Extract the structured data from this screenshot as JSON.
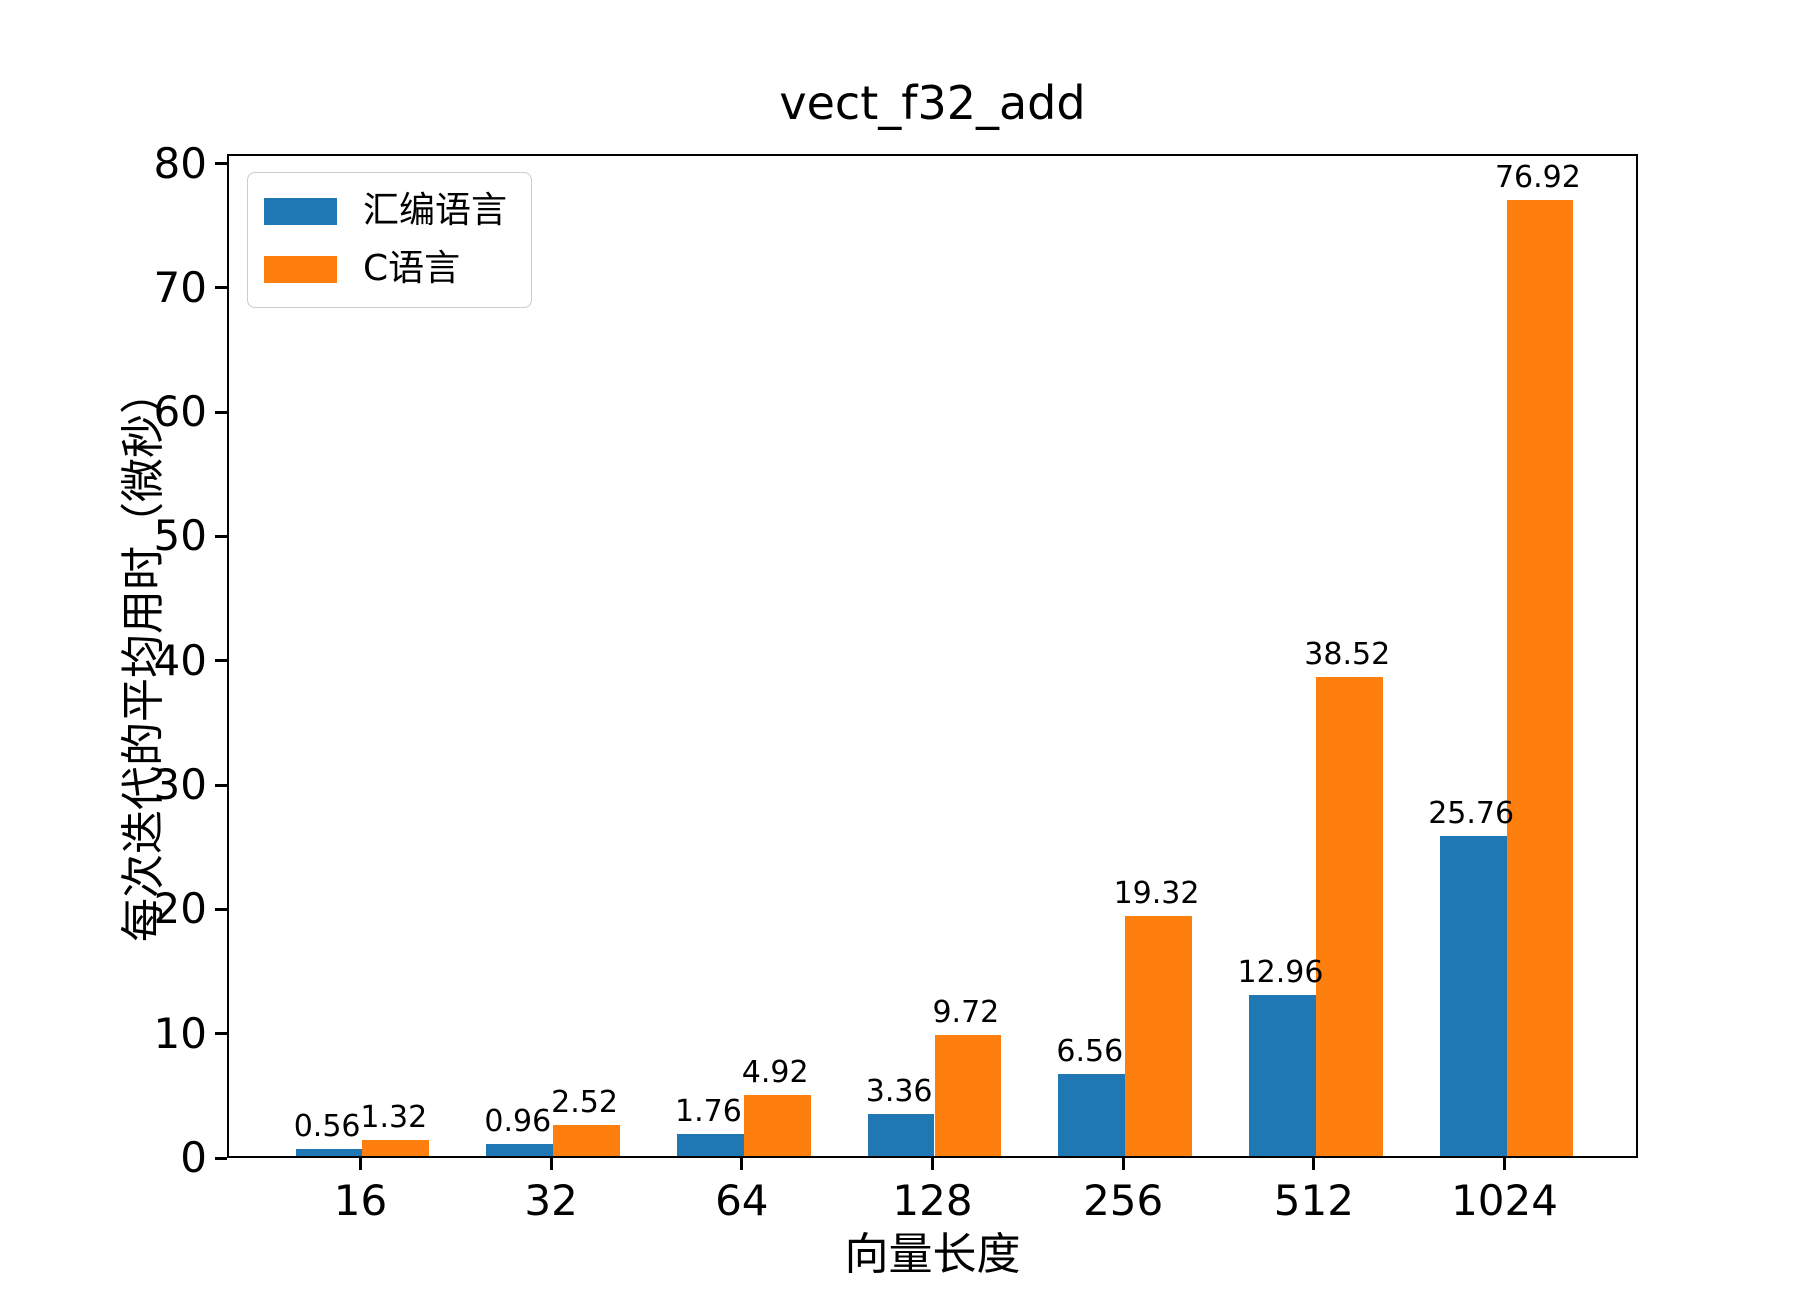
{
  "chart_data": {
    "type": "bar",
    "title": "vect_f32_add",
    "xlabel": "向量长度",
    "ylabel": "每次迭代的平均用时（微秒）",
    "categories": [
      "16",
      "32",
      "64",
      "128",
      "256",
      "512",
      "1024"
    ],
    "series": [
      {
        "name": "汇编语言",
        "color": "#1f77b4",
        "values": [
          0.56,
          0.96,
          1.76,
          3.36,
          6.56,
          12.96,
          25.76
        ]
      },
      {
        "name": "C语言",
        "color": "#ff7f0e",
        "values": [
          1.32,
          2.52,
          4.92,
          9.72,
          19.32,
          38.52,
          76.92
        ]
      }
    ],
    "ylim": [
      0,
      80.77
    ],
    "yticks": [
      0,
      10,
      20,
      30,
      40,
      50,
      60,
      70,
      80
    ],
    "bar_width_fraction": 0.35,
    "value_labels_decimals": 2,
    "legend_position": "upper left",
    "grid": false,
    "spine_color": "#000000",
    "background_color": "#ffffff"
  }
}
